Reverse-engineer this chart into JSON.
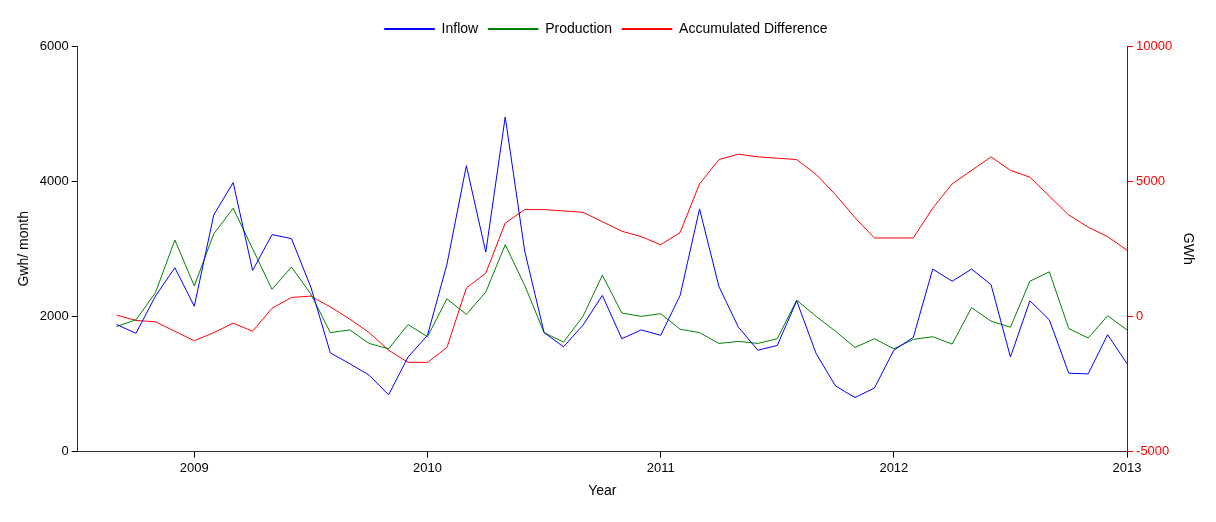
{
  "chart_data": {
    "type": "line",
    "xlabel": "Year",
    "ylabel": "Gwh/ month",
    "y2label": "GWh",
    "x": [
      "2008-09",
      "2008-10",
      "2008-11",
      "2008-12",
      "2009-01",
      "2009-02",
      "2009-03",
      "2009-04",
      "2009-05",
      "2009-06",
      "2009-07",
      "2009-08",
      "2009-09",
      "2009-10",
      "2009-11",
      "2009-12",
      "2010-01",
      "2010-02",
      "2010-03",
      "2010-04",
      "2010-05",
      "2010-06",
      "2010-07",
      "2010-08",
      "2010-09",
      "2010-10",
      "2010-11",
      "2010-12",
      "2011-01",
      "2011-02",
      "2011-03",
      "2011-04",
      "2011-05",
      "2011-06",
      "2011-07",
      "2011-08",
      "2011-09",
      "2011-10",
      "2011-11",
      "2011-12",
      "2012-01",
      "2012-02",
      "2012-03",
      "2012-04",
      "2012-05",
      "2012-06",
      "2012-07",
      "2012-08",
      "2012-09",
      "2012-10",
      "2012-11",
      "2012-12",
      "2013-01"
    ],
    "series": [
      {
        "name": "Inflow",
        "color": "#0000ff",
        "values": [
          1880,
          1750,
          2300,
          2720,
          2150,
          3500,
          3980,
          2680,
          3210,
          3150,
          2430,
          1460,
          1300,
          1130,
          840,
          1400,
          1720,
          2770,
          4230,
          2950,
          4950,
          2970,
          1760,
          1550,
          1870,
          2310,
          1670,
          1800,
          1720,
          2310,
          3590,
          2440,
          1840,
          1500,
          1570,
          2230,
          1450,
          970,
          800,
          940,
          1500,
          1690,
          2700,
          2520,
          2700,
          2470,
          1400,
          2230,
          1950,
          1160,
          1150,
          1730,
          1300
        ]
      },
      {
        "name": "Production",
        "color": "#008000",
        "values": [
          1850,
          1950,
          2350,
          3130,
          2450,
          3220,
          3600,
          3000,
          2400,
          2730,
          2330,
          1760,
          1800,
          1600,
          1520,
          1880,
          1700,
          2260,
          2030,
          2360,
          3060,
          2460,
          1760,
          1620,
          2000,
          2610,
          2050,
          2000,
          2040,
          1810,
          1760,
          1600,
          1630,
          1600,
          1670,
          2240,
          2000,
          1780,
          1540,
          1670,
          1520,
          1660,
          1700,
          1590,
          2130,
          1930,
          1840,
          2520,
          2660,
          1820,
          1680,
          2010,
          1800
        ]
      },
      {
        "name": "Accumulated Difference",
        "color": "#ff0000",
        "axis": "y2",
        "values": [
          50,
          -150,
          -200,
          -550,
          -900,
          -600,
          -250,
          -550,
          300,
          700,
          750,
          350,
          -100,
          -600,
          -1250,
          -1700,
          -1700,
          -1150,
          1050,
          1600,
          3450,
          3950,
          3950,
          3900,
          3850,
          3500,
          3150,
          2950,
          2650,
          3100,
          4900,
          5800,
          6000,
          5900,
          5850,
          5800,
          5250,
          4500,
          3650,
          2900,
          2900,
          2900,
          4000,
          4900,
          5400,
          5900,
          5400,
          5150,
          4450,
          3750,
          3300,
          2950,
          2450
        ]
      }
    ],
    "xlim": [
      "2008-07",
      "2013-01"
    ],
    "xticks": [
      "2009",
      "2010",
      "2011",
      "2012",
      "2013"
    ],
    "ylim": [
      0,
      6000
    ],
    "yticks": [
      0,
      2000,
      4000,
      6000
    ],
    "y2lim": [
      -5000,
      10000
    ],
    "y2ticks": [
      -5000,
      0,
      5000,
      10000
    ],
    "grid": false,
    "legend": "top",
    "marker": "none",
    "line_style": "solid"
  }
}
